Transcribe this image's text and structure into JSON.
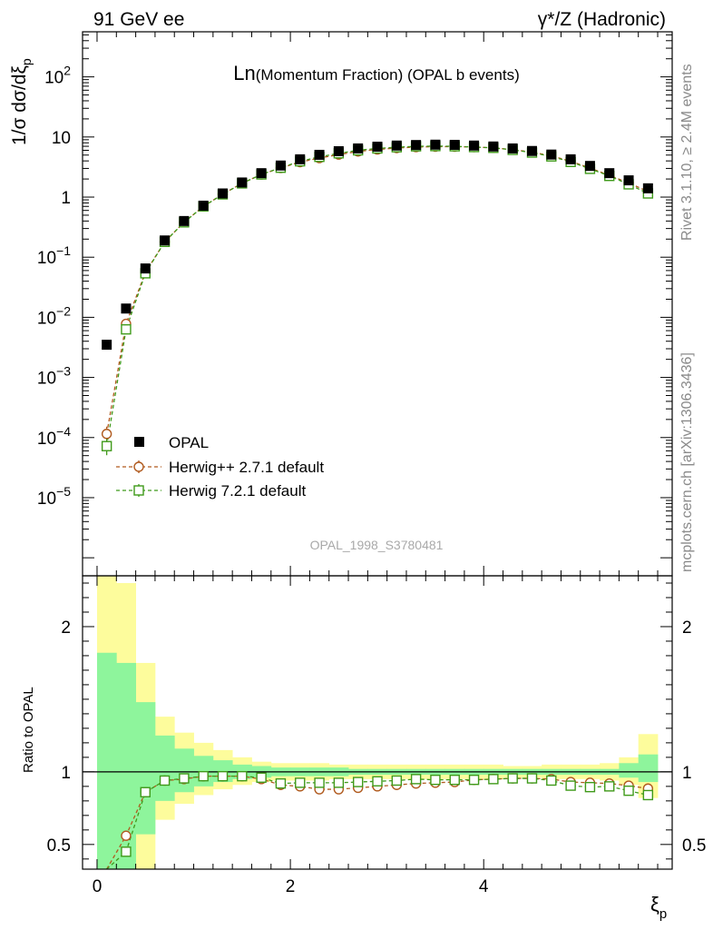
{
  "header": {
    "energy_label": "91 GeV ee",
    "process_label": "γ*/Z (Hadronic)",
    "title_main": "Ln",
    "title_rest": "(Momentum Fraction) (OPAL b events)",
    "watermark": "OPAL_1998_S3780481",
    "side_rivet": "Rivet 3.1.10, ≥ 2.4M events",
    "side_mcplots": "mcplots.cern.ch [arXiv:1306.3436]"
  },
  "axes": {
    "main_ylabel": "1/σ dσ/dξ",
    "main_ylabel_sub": "p",
    "ratio_ylabel": "Ratio to OPAL",
    "xlabel": "ξ",
    "xlabel_sub": "p",
    "x_ticks": [
      "0",
      "2",
      "4"
    ],
    "main_y_ticks": [
      {
        "base": "10",
        "exp": "2"
      },
      {
        "base": "10",
        "exp": ""
      },
      {
        "base": "1",
        "exp": ""
      },
      {
        "base": "10",
        "exp": "−1"
      },
      {
        "base": "10",
        "exp": "−2"
      },
      {
        "base": "10",
        "exp": "−3"
      },
      {
        "base": "10",
        "exp": "−4"
      },
      {
        "base": "10",
        "exp": "−5"
      }
    ],
    "ratio_y_ticks": [
      "2",
      "1",
      "0.5"
    ],
    "ratio_y_ticks_right": [
      "2",
      "1",
      "0.5"
    ]
  },
  "legend": [
    {
      "label": "OPAL",
      "style": "data",
      "color": "#000000"
    },
    {
      "label": "Herwig++ 2.7.1 default",
      "style": "circle",
      "color": "#b05a1e"
    },
    {
      "label": "Herwig 7.2.1 default",
      "style": "square",
      "color": "#3f9a1a"
    }
  ],
  "chart_data": {
    "type": "scatter",
    "xlim": [
      -0.15,
      5.95
    ],
    "main_ylog_range": [
      -6.3,
      2.75
    ],
    "ratio_ylim": [
      0.33,
      2.35
    ],
    "x": [
      0.1,
      0.3,
      0.5,
      0.7,
      0.9,
      1.1,
      1.3,
      1.5,
      1.7,
      1.9,
      2.1,
      2.3,
      2.5,
      2.7,
      2.9,
      3.1,
      3.3,
      3.5,
      3.7,
      3.9,
      4.1,
      4.3,
      4.5,
      4.7,
      4.9,
      5.1,
      5.3,
      5.5,
      5.7
    ],
    "bin_edges": [
      0.0,
      0.2,
      0.4,
      0.6,
      0.8,
      1.0,
      1.2,
      1.4,
      1.6,
      1.8,
      2.0,
      2.2,
      2.4,
      2.6,
      2.8,
      3.0,
      3.2,
      3.4,
      3.6,
      3.8,
      4.0,
      4.2,
      4.4,
      4.6,
      4.8,
      5.0,
      5.2,
      5.4,
      5.6,
      5.8
    ],
    "series": [
      {
        "name": "OPAL",
        "values": [
          0.0035,
          0.014,
          0.065,
          0.19,
          0.4,
          0.72,
          1.15,
          1.75,
          2.5,
          3.35,
          4.25,
          5.05,
          5.8,
          6.45,
          6.9,
          7.2,
          7.35,
          7.45,
          7.4,
          7.2,
          6.95,
          6.45,
          5.85,
          5.1,
          4.25,
          3.3,
          2.5,
          1.9,
          1.4
        ]
      },
      {
        "name": "Herwig++ 2.7.1 default",
        "values": [
          0.000115,
          0.0078,
          0.056,
          0.18,
          0.38,
          0.7,
          1.12,
          1.7,
          2.38,
          3.05,
          3.82,
          4.46,
          5.1,
          5.75,
          6.2,
          6.55,
          6.8,
          6.9,
          6.9,
          6.8,
          6.6,
          6.15,
          5.6,
          4.85,
          3.95,
          3.05,
          2.3,
          1.72,
          1.24
        ],
        "ratio": [
          0.033,
          0.56,
          0.86,
          0.94,
          0.95,
          0.97,
          0.97,
          0.97,
          0.95,
          0.91,
          0.9,
          0.88,
          0.88,
          0.89,
          0.9,
          0.91,
          0.92,
          0.925,
          0.93,
          0.945,
          0.95,
          0.955,
          0.955,
          0.95,
          0.93,
          0.925,
          0.92,
          0.905,
          0.885
        ]
      },
      {
        "name": "Herwig 7.2.1 default",
        "values": [
          7.2e-05,
          0.0063,
          0.054,
          0.18,
          0.38,
          0.7,
          1.11,
          1.69,
          2.38,
          3.08,
          3.94,
          4.67,
          5.35,
          6.0,
          6.45,
          6.75,
          6.99,
          7.05,
          7.0,
          6.8,
          6.6,
          6.1,
          5.5,
          4.75,
          3.85,
          2.95,
          2.25,
          1.63,
          1.15
        ],
        "ratio": [
          0.021,
          0.45,
          0.86,
          0.94,
          0.955,
          0.97,
          0.97,
          0.97,
          0.96,
          0.92,
          0.925,
          0.925,
          0.925,
          0.93,
          0.935,
          0.94,
          0.95,
          0.945,
          0.945,
          0.945,
          0.95,
          0.955,
          0.955,
          0.94,
          0.905,
          0.895,
          0.9,
          0.87,
          0.84
        ]
      }
    ],
    "ratio_band_green": [
      [
        0.33,
        1.82
      ],
      [
        0.33,
        1.75
      ],
      [
        0.57,
        1.48
      ],
      [
        0.8,
        1.25
      ],
      [
        0.86,
        1.16
      ],
      [
        0.9,
        1.11
      ],
      [
        0.93,
        1.08
      ],
      [
        0.95,
        1.05
      ],
      [
        0.96,
        1.04
      ],
      [
        0.97,
        1.03
      ],
      [
        0.97,
        1.03
      ],
      [
        0.97,
        1.03
      ],
      [
        0.97,
        1.03
      ],
      [
        0.98,
        1.02
      ],
      [
        0.98,
        1.02
      ],
      [
        0.98,
        1.02
      ],
      [
        0.98,
        1.02
      ],
      [
        0.98,
        1.02
      ],
      [
        0.98,
        1.02
      ],
      [
        0.98,
        1.02
      ],
      [
        0.98,
        1.02
      ],
      [
        0.98,
        1.02
      ],
      [
        0.98,
        1.02
      ],
      [
        0.98,
        1.02
      ],
      [
        0.98,
        1.02
      ],
      [
        0.98,
        1.02
      ],
      [
        0.98,
        1.02
      ],
      [
        0.96,
        1.06
      ],
      [
        0.93,
        1.12
      ]
    ],
    "ratio_band_yellow": [
      [
        0.33,
        2.35
      ],
      [
        0.33,
        2.3
      ],
      [
        0.33,
        1.75
      ],
      [
        0.67,
        1.38
      ],
      [
        0.78,
        1.27
      ],
      [
        0.84,
        1.2
      ],
      [
        0.88,
        1.15
      ],
      [
        0.91,
        1.1
      ],
      [
        0.93,
        1.07
      ],
      [
        0.94,
        1.06
      ],
      [
        0.94,
        1.06
      ],
      [
        0.94,
        1.06
      ],
      [
        0.95,
        1.05
      ],
      [
        0.95,
        1.05
      ],
      [
        0.95,
        1.05
      ],
      [
        0.95,
        1.05
      ],
      [
        0.95,
        1.05
      ],
      [
        0.95,
        1.05
      ],
      [
        0.95,
        1.05
      ],
      [
        0.95,
        1.05
      ],
      [
        0.95,
        1.05
      ],
      [
        0.96,
        1.04
      ],
      [
        0.96,
        1.04
      ],
      [
        0.95,
        1.05
      ],
      [
        0.95,
        1.05
      ],
      [
        0.95,
        1.05
      ],
      [
        0.94,
        1.06
      ],
      [
        0.91,
        1.1
      ],
      [
        0.82,
        1.26
      ]
    ],
    "colors": {
      "data": "#000000",
      "herwigpp": "#b05a1e",
      "herwig7": "#3f9a1a",
      "band_green": "#8ef59c",
      "band_yellow": "#fdfc9c",
      "watermark": "#a9a9a9",
      "side_text": "#8a8a8a"
    }
  }
}
